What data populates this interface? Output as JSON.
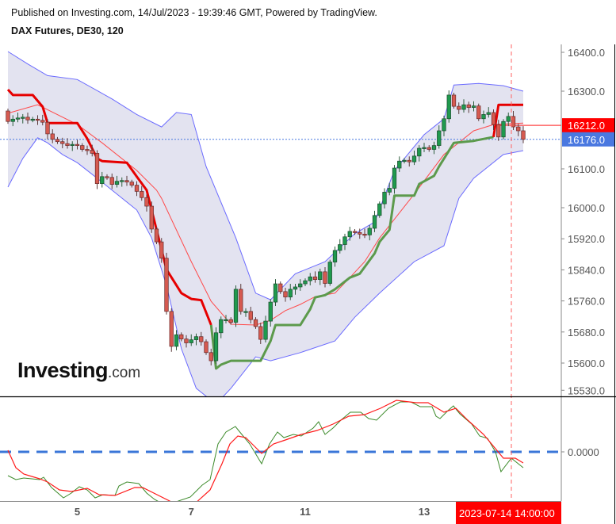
{
  "header": {
    "published": "Published on Investing.com, 14/Jul/2023 - 19:39:46 GMT, Powered by TradingView.",
    "symbol": "DAX Futures, DE30, 120"
  },
  "logo": {
    "main": "Investing",
    "domain": ".com"
  },
  "colors": {
    "candle_up": "#1f9a4e",
    "candle_down": "#d65a50",
    "band_line": "#6a6aff",
    "band_fill": "#e3e3f0",
    "basis": "#ff4a4a",
    "supertrend_down": "#e60000",
    "supertrend_up": "#5c9a4c",
    "osc_fast": "#3c8a2a",
    "osc_slow": "#ff1a1a",
    "zero_line": "#3a76d8",
    "last_price_box": "#ff0000",
    "current_price_box": "#4a78e0",
    "crosshair": "#ff6060"
  },
  "chart_data": [
    {
      "type": "candlestick",
      "title": "DAX Futures, DE30, 120",
      "ylim": [
        15515,
        16430
      ],
      "y_ticks": [
        "16400.0",
        "16300.0",
        "16100.0",
        "16000.0",
        "15920.0",
        "15840.0",
        "15760.0",
        "15680.0",
        "15600.0",
        "15530.0"
      ],
      "y_tick_values": [
        16400,
        16300,
        16100,
        16000,
        15920,
        15840,
        15760,
        15680,
        15600,
        15530
      ],
      "x_ticks": [
        {
          "label": "5",
          "bar": 14
        },
        {
          "label": "7",
          "bar": 37
        },
        {
          "label": "11",
          "bar": 60
        },
        {
          "label": "13",
          "bar": 84
        }
      ],
      "first_open": 16249,
      "closes": [
        16222,
        16228,
        16231,
        16233,
        16226,
        16228,
        16225,
        16220,
        16190,
        16176,
        16170,
        16165,
        16160,
        16163,
        16160,
        16150,
        16148,
        16140,
        16062,
        16080,
        16078,
        16060,
        16068,
        16070,
        16066,
        16058,
        16042,
        16026,
        16004,
        15945,
        15912,
        15870,
        15733,
        15643,
        15673,
        15662,
        15652,
        15660,
        15668,
        15655,
        15627,
        15606,
        15678,
        15712,
        15712,
        15705,
        15790,
        15733,
        15733,
        15712,
        15694,
        15661,
        15708,
        15757,
        15804,
        15784,
        15770,
        15790,
        15796,
        15804,
        15812,
        15822,
        15815,
        15835,
        15805,
        15860,
        15890,
        15905,
        15925,
        15939,
        15936,
        15932,
        15930,
        15947,
        15980,
        16010,
        16040,
        16050,
        16102,
        16120,
        16122,
        16118,
        16133,
        16153,
        16155,
        16150,
        16160,
        16198,
        16229,
        16290,
        16261,
        16253,
        16265,
        16258,
        16262,
        16229,
        16240,
        16245,
        16214,
        16182,
        16222,
        16235,
        16208,
        16198,
        16176
      ],
      "bollinger_upper": [
        [
          0,
          16402
        ],
        [
          4,
          16370
        ],
        [
          8,
          16340
        ],
        [
          14,
          16330
        ],
        [
          21,
          16280
        ],
        [
          26,
          16240
        ],
        [
          31,
          16208
        ],
        [
          34,
          16245
        ],
        [
          37,
          16240
        ],
        [
          40,
          16106
        ],
        [
          46,
          15922
        ],
        [
          50,
          15780
        ],
        [
          53,
          15763
        ],
        [
          58,
          15830
        ],
        [
          64,
          15861
        ],
        [
          70,
          15933
        ],
        [
          74,
          15963
        ],
        [
          78,
          16096
        ],
        [
          84,
          16188
        ],
        [
          88,
          16229
        ],
        [
          90,
          16316
        ],
        [
          95,
          16320
        ],
        [
          100,
          16314
        ],
        [
          104,
          16300
        ]
      ],
      "bollinger_lower": [
        [
          0,
          16053
        ],
        [
          3,
          16127
        ],
        [
          6,
          16180
        ],
        [
          8,
          16167
        ],
        [
          11,
          16137
        ],
        [
          14,
          16116
        ],
        [
          18,
          16076
        ],
        [
          21,
          16045
        ],
        [
          26,
          15994
        ],
        [
          29,
          15922
        ],
        [
          32,
          15800
        ],
        [
          35,
          15637
        ],
        [
          38,
          15535
        ],
        [
          42,
          15494
        ],
        [
          45,
          15535
        ],
        [
          50,
          15616
        ],
        [
          53,
          15606
        ],
        [
          59,
          15627
        ],
        [
          66,
          15657
        ],
        [
          70,
          15718
        ],
        [
          75,
          15780
        ],
        [
          82,
          15861
        ],
        [
          88,
          15902
        ],
        [
          91,
          16024
        ],
        [
          94,
          16076
        ],
        [
          100,
          16137
        ],
        [
          104,
          16147
        ]
      ],
      "bollinger_basis": [
        [
          0,
          16243
        ],
        [
          6,
          16265
        ],
        [
          14,
          16214
        ],
        [
          19,
          16167
        ],
        [
          26,
          16096
        ],
        [
          30,
          16045
        ],
        [
          31,
          16024
        ],
        [
          37,
          15861
        ],
        [
          41,
          15759
        ],
        [
          45,
          15700
        ],
        [
          50,
          15698
        ],
        [
          53,
          15710
        ],
        [
          56,
          15735
        ],
        [
          59,
          15751
        ],
        [
          62,
          15771
        ],
        [
          66,
          15780
        ],
        [
          69,
          15820
        ],
        [
          72,
          15861
        ],
        [
          75,
          15922
        ],
        [
          82,
          16035
        ],
        [
          88,
          16137
        ],
        [
          94,
          16198
        ],
        [
          98,
          16214
        ],
        [
          104,
          16218
        ]
      ],
      "supertrend": [
        {
          "trend": "down",
          "points": [
            [
              0,
              16304
            ],
            [
              1,
              16290
            ],
            [
              5,
              16290
            ],
            [
              7,
              16260
            ],
            [
              8,
              16218
            ],
            [
              14,
              16218
            ],
            [
              16,
              16178
            ],
            [
              18,
              16127
            ],
            [
              19,
              16120
            ],
            [
              24,
              16116
            ],
            [
              26,
              16080
            ],
            [
              28,
              16045
            ],
            [
              30,
              15943
            ],
            [
              32,
              15841
            ],
            [
              35,
              15780
            ],
            [
              37,
              15765
            ],
            [
              39,
              15762
            ],
            [
              41,
              15698
            ]
          ]
        },
        {
          "trend": "up",
          "points": [
            [
              41,
              15698
            ],
            [
              42,
              15586
            ],
            [
              43,
              15596
            ],
            [
              45,
              15606
            ],
            [
              51,
              15606
            ],
            [
              53,
              15657
            ],
            [
              54,
              15698
            ],
            [
              59,
              15698
            ],
            [
              61,
              15739
            ],
            [
              62,
              15769
            ],
            [
              64,
              15775
            ],
            [
              66,
              15790
            ],
            [
              69,
              15820
            ],
            [
              71,
              15830
            ],
            [
              74,
              15882
            ],
            [
              75,
              15912
            ],
            [
              77,
              15943
            ],
            [
              78,
              16031
            ],
            [
              82,
              16031
            ],
            [
              83,
              16061
            ],
            [
              86,
              16082
            ],
            [
              87,
              16106
            ],
            [
              90,
              16167
            ],
            [
              94,
              16172
            ],
            [
              98,
              16182
            ]
          ]
        },
        {
          "trend": "down",
          "points": [
            [
              98,
              16182
            ],
            [
              99,
              16265
            ],
            [
              104,
              16265
            ]
          ]
        }
      ],
      "last_price": {
        "label": "16212.0",
        "value": 16212
      },
      "current_price": {
        "label": "16176.0",
        "value": 16176
      },
      "crosshair": {
        "bar": 101.6,
        "label": "2023-07-14 14:00:00"
      }
    },
    {
      "type": "line",
      "y_ticks": [
        "0.0000"
      ],
      "zero_label": "0.0000",
      "ylim": [
        -62,
        68
      ],
      "series": [
        {
          "values": [
            [
              0,
              -30
            ],
            [
              1.6,
              -35
            ],
            [
              3.2,
              -33
            ],
            [
              6.4,
              -35
            ],
            [
              7.2,
              -32
            ],
            [
              8.8,
              -45
            ],
            [
              11.2,
              -58
            ],
            [
              12.8,
              -52
            ],
            [
              14.4,
              -44
            ],
            [
              16,
              -48
            ],
            [
              17.6,
              -58
            ],
            [
              19.2,
              -54
            ],
            [
              21.6,
              -55
            ],
            [
              22.4,
              -43
            ],
            [
              24,
              -38
            ],
            [
              26.4,
              -40
            ],
            [
              28,
              -52
            ],
            [
              29.6,
              -60
            ],
            [
              32,
              -68
            ],
            [
              34.4,
              -62
            ],
            [
              36.8,
              -57
            ],
            [
              39.2,
              -42
            ],
            [
              40.8,
              -35
            ],
            [
              42.4,
              10
            ],
            [
              44,
              25
            ],
            [
              45.9,
              32
            ],
            [
              47.2,
              22
            ],
            [
              48.8,
              10
            ],
            [
              51.2,
              -15
            ],
            [
              52.8,
              10
            ],
            [
              54.4,
              25
            ],
            [
              55.7,
              18
            ],
            [
              57.6,
              22
            ],
            [
              59.2,
              20
            ],
            [
              61.6,
              30
            ],
            [
              62.7,
              38
            ],
            [
              64,
              22
            ],
            [
              65.6,
              30
            ],
            [
              67.2,
              40
            ],
            [
              69.1,
              50
            ],
            [
              71.2,
              50
            ],
            [
              72.8,
              42
            ],
            [
              74.4,
              40
            ],
            [
              76.8,
              55
            ],
            [
              79.2,
              63
            ],
            [
              81.3,
              63
            ],
            [
              83.2,
              57
            ],
            [
              85.6,
              57
            ],
            [
              86.4,
              45
            ],
            [
              87.2,
              42
            ],
            [
              88.8,
              52
            ],
            [
              89.9,
              58
            ],
            [
              91.2,
              48
            ],
            [
              93.6,
              35
            ],
            [
              95.2,
              20
            ],
            [
              96.8,
              17
            ],
            [
              98.4,
              0
            ],
            [
              99.5,
              -25
            ],
            [
              101.6,
              -8
            ],
            [
              104,
              -20
            ]
          ]
        },
        {
          "values": [
            [
              0,
              2
            ],
            [
              1.6,
              -20
            ],
            [
              3.2,
              -28
            ],
            [
              6.4,
              -34
            ],
            [
              8,
              -38
            ],
            [
              10.4,
              -48
            ],
            [
              12.8,
              -50
            ],
            [
              16,
              -46
            ],
            [
              18.4,
              -54
            ],
            [
              21.6,
              -55
            ],
            [
              25.6,
              -45
            ],
            [
              27.2,
              -45
            ],
            [
              30.4,
              -55
            ],
            [
              33.6,
              -65
            ],
            [
              37.6,
              -66
            ],
            [
              40.8,
              -48
            ],
            [
              43.2,
              -15
            ],
            [
              44.8,
              10
            ],
            [
              46.4,
              20
            ],
            [
              48,
              18
            ],
            [
              49.6,
              8
            ],
            [
              51.2,
              -2
            ],
            [
              53.6,
              10
            ],
            [
              56,
              15
            ],
            [
              59.2,
              22
            ],
            [
              62.4,
              27
            ],
            [
              65.6,
              35
            ],
            [
              68.8,
              45
            ],
            [
              72,
              47
            ],
            [
              75.2,
              55
            ],
            [
              78.4,
              65
            ],
            [
              82.4,
              62
            ],
            [
              84.8,
              62
            ],
            [
              88,
              50
            ],
            [
              90.4,
              55
            ],
            [
              92.8,
              40
            ],
            [
              96,
              22
            ],
            [
              98.4,
              4
            ],
            [
              100,
              -8
            ],
            [
              102.4,
              -8
            ],
            [
              104,
              -14
            ]
          ]
        }
      ]
    }
  ]
}
